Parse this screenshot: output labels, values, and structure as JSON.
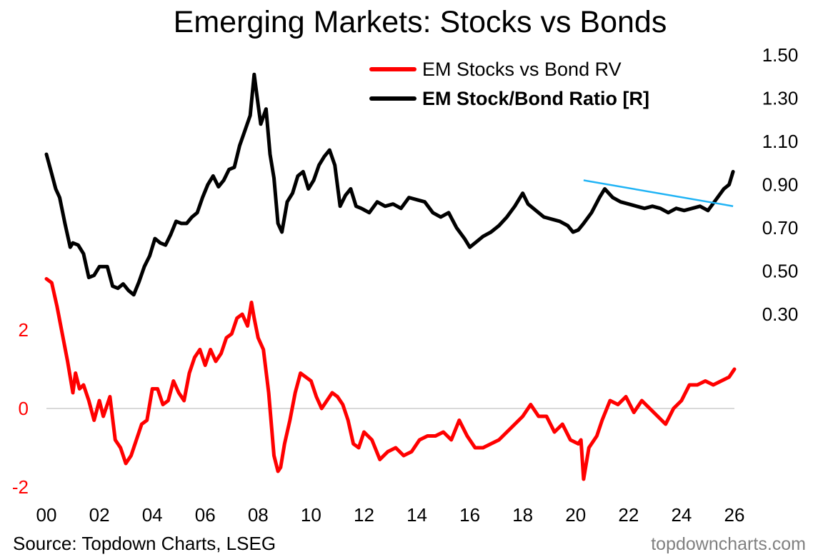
{
  "chart_data": {
    "type": "line",
    "title": "Emerging Markets: Stocks vs Bonds",
    "xlabel": "",
    "x_tick_labels": [
      "00",
      "02",
      "04",
      "06",
      "08",
      "10",
      "12",
      "14",
      "16",
      "18",
      "20",
      "22",
      "24",
      "26"
    ],
    "x_tick_values": [
      2000,
      2002,
      2004,
      2006,
      2008,
      2010,
      2012,
      2014,
      2016,
      2018,
      2020,
      2022,
      2024,
      2026
    ],
    "xlim": [
      2000,
      2026
    ],
    "left_axis": {
      "ticks": [
        -2,
        0,
        2
      ],
      "tick_labels": [
        "-2",
        "0",
        "2"
      ],
      "range": [
        -2,
        2.8
      ],
      "color": "#ff0000"
    },
    "right_axis": {
      "ticks": [
        0.3,
        0.5,
        0.7,
        0.9,
        1.1,
        1.3,
        1.5
      ],
      "tick_labels": [
        "0.30",
        "0.50",
        "0.70",
        "0.90",
        "1.10",
        "1.30",
        "1.50"
      ],
      "range": [
        0.3,
        1.5
      ]
    },
    "zero_line": 0,
    "legend_position": "top-right",
    "series": [
      {
        "name": "EM Stocks vs Bond RV",
        "axis": "left",
        "color": "#ff0000",
        "x": [
          2000.0,
          2000.2,
          2000.4,
          2000.6,
          2000.8,
          2001.0,
          2001.1,
          2001.25,
          2001.4,
          2001.6,
          2001.8,
          2002.0,
          2002.15,
          2002.4,
          2002.6,
          2002.8,
          2003.0,
          2003.2,
          2003.4,
          2003.6,
          2003.8,
          2004.0,
          2004.2,
          2004.4,
          2004.6,
          2004.8,
          2005.0,
          2005.2,
          2005.4,
          2005.6,
          2005.8,
          2006.0,
          2006.2,
          2006.4,
          2006.6,
          2006.8,
          2007.0,
          2007.2,
          2007.4,
          2007.6,
          2007.75,
          2007.85,
          2008.0,
          2008.2,
          2008.4,
          2008.6,
          2008.75,
          2008.85,
          2009.0,
          2009.2,
          2009.4,
          2009.6,
          2009.8,
          2010.0,
          2010.2,
          2010.4,
          2010.6,
          2010.8,
          2011.0,
          2011.2,
          2011.4,
          2011.6,
          2011.8,
          2012.0,
          2012.3,
          2012.6,
          2012.9,
          2013.2,
          2013.5,
          2013.8,
          2014.1,
          2014.4,
          2014.7,
          2015.0,
          2015.3,
          2015.6,
          2015.9,
          2016.2,
          2016.5,
          2016.8,
          2017.1,
          2017.4,
          2017.7,
          2018.0,
          2018.3,
          2018.6,
          2018.9,
          2019.2,
          2019.5,
          2019.8,
          2020.1,
          2020.2,
          2020.3,
          2020.5,
          2020.8,
          2021.0,
          2021.3,
          2021.6,
          2021.9,
          2022.2,
          2022.5,
          2022.8,
          2023.1,
          2023.4,
          2023.7,
          2024.0,
          2024.3,
          2024.6,
          2024.9,
          2025.2,
          2025.5,
          2025.8,
          2026.0
        ],
        "values": [
          3.3,
          3.2,
          2.6,
          1.9,
          1.2,
          0.4,
          0.9,
          0.5,
          0.6,
          0.2,
          -0.3,
          0.2,
          -0.2,
          0.3,
          -0.8,
          -1.0,
          -1.4,
          -1.2,
          -0.8,
          -0.4,
          -0.3,
          0.5,
          0.5,
          0.1,
          0.2,
          0.7,
          0.4,
          0.2,
          0.9,
          1.3,
          1.5,
          1.1,
          1.5,
          1.2,
          1.4,
          1.8,
          1.9,
          2.3,
          2.4,
          2.1,
          2.7,
          2.3,
          1.8,
          1.5,
          0.4,
          -1.2,
          -1.6,
          -1.5,
          -0.9,
          -0.3,
          0.4,
          0.9,
          0.8,
          0.7,
          0.3,
          0.0,
          0.2,
          0.4,
          0.3,
          0.1,
          -0.3,
          -0.9,
          -1.0,
          -0.6,
          -0.8,
          -1.3,
          -1.1,
          -1.0,
          -1.2,
          -1.1,
          -0.8,
          -0.7,
          -0.7,
          -0.6,
          -0.8,
          -0.3,
          -0.7,
          -1.0,
          -1.0,
          -0.9,
          -0.8,
          -0.6,
          -0.4,
          -0.2,
          0.1,
          -0.2,
          -0.2,
          -0.6,
          -0.4,
          -0.8,
          -0.9,
          -0.8,
          -1.8,
          -1.0,
          -0.7,
          -0.3,
          0.2,
          0.1,
          0.3,
          -0.1,
          0.2,
          0.0,
          -0.2,
          -0.4,
          0.0,
          0.2,
          0.6,
          0.6,
          0.7,
          0.6,
          0.7,
          0.8,
          1.0
        ]
      },
      {
        "name": "EM Stock/Bond Ratio [R]",
        "axis": "right",
        "color": "#000000",
        "x": [
          2000.0,
          2000.2,
          2000.35,
          2000.5,
          2000.7,
          2000.9,
          2001.0,
          2001.2,
          2001.4,
          2001.6,
          2001.8,
          2002.0,
          2002.3,
          2002.5,
          2002.7,
          2002.9,
          2003.1,
          2003.3,
          2003.5,
          2003.7,
          2003.9,
          2004.1,
          2004.3,
          2004.5,
          2004.7,
          2004.9,
          2005.1,
          2005.3,
          2005.5,
          2005.7,
          2005.9,
          2006.1,
          2006.3,
          2006.5,
          2006.7,
          2006.9,
          2007.1,
          2007.3,
          2007.5,
          2007.7,
          2007.85,
          2008.0,
          2008.1,
          2008.3,
          2008.45,
          2008.6,
          2008.75,
          2008.9,
          2009.1,
          2009.3,
          2009.5,
          2009.7,
          2009.9,
          2010.1,
          2010.3,
          2010.5,
          2010.7,
          2010.9,
          2011.1,
          2011.3,
          2011.5,
          2011.7,
          2011.9,
          2012.2,
          2012.5,
          2012.8,
          2013.1,
          2013.4,
          2013.7,
          2014.0,
          2014.3,
          2014.6,
          2014.9,
          2015.2,
          2015.5,
          2015.8,
          2016.0,
          2016.2,
          2016.5,
          2016.8,
          2017.1,
          2017.4,
          2017.7,
          2018.0,
          2018.2,
          2018.5,
          2018.8,
          2019.1,
          2019.4,
          2019.7,
          2019.9,
          2020.1,
          2020.3,
          2020.6,
          2020.9,
          2021.1,
          2021.4,
          2021.7,
          2022.0,
          2022.3,
          2022.6,
          2022.9,
          2023.2,
          2023.5,
          2023.8,
          2024.1,
          2024.4,
          2024.7,
          2025.0,
          2025.3,
          2025.6,
          2025.8,
          2025.95
        ],
        "values": [
          1.04,
          0.95,
          0.88,
          0.84,
          0.72,
          0.61,
          0.63,
          0.62,
          0.58,
          0.47,
          0.48,
          0.52,
          0.52,
          0.43,
          0.42,
          0.44,
          0.41,
          0.39,
          0.45,
          0.52,
          0.57,
          0.65,
          0.63,
          0.62,
          0.67,
          0.73,
          0.72,
          0.72,
          0.75,
          0.77,
          0.84,
          0.9,
          0.94,
          0.89,
          0.92,
          0.97,
          0.98,
          1.08,
          1.15,
          1.22,
          1.41,
          1.27,
          1.18,
          1.25,
          1.04,
          0.93,
          0.72,
          0.68,
          0.82,
          0.86,
          0.94,
          0.96,
          0.88,
          0.92,
          0.99,
          1.03,
          1.06,
          0.99,
          0.8,
          0.85,
          0.88,
          0.8,
          0.79,
          0.77,
          0.82,
          0.8,
          0.81,
          0.79,
          0.84,
          0.83,
          0.82,
          0.77,
          0.75,
          0.77,
          0.7,
          0.65,
          0.61,
          0.63,
          0.66,
          0.68,
          0.71,
          0.75,
          0.8,
          0.86,
          0.81,
          0.78,
          0.75,
          0.74,
          0.73,
          0.71,
          0.68,
          0.69,
          0.72,
          0.77,
          0.84,
          0.88,
          0.84,
          0.82,
          0.81,
          0.8,
          0.79,
          0.8,
          0.79,
          0.77,
          0.79,
          0.78,
          0.79,
          0.8,
          0.78,
          0.83,
          0.88,
          0.9,
          0.96
        ]
      }
    ],
    "annotations": [
      {
        "type": "trendline",
        "color": "#1fb3f5",
        "axis": "right",
        "x": [
          2020.3,
          2025.95
        ],
        "values": [
          0.92,
          0.8
        ]
      }
    ]
  },
  "source": "Source: Topdown Charts, LSEG",
  "watermark": "topdowncharts.com"
}
